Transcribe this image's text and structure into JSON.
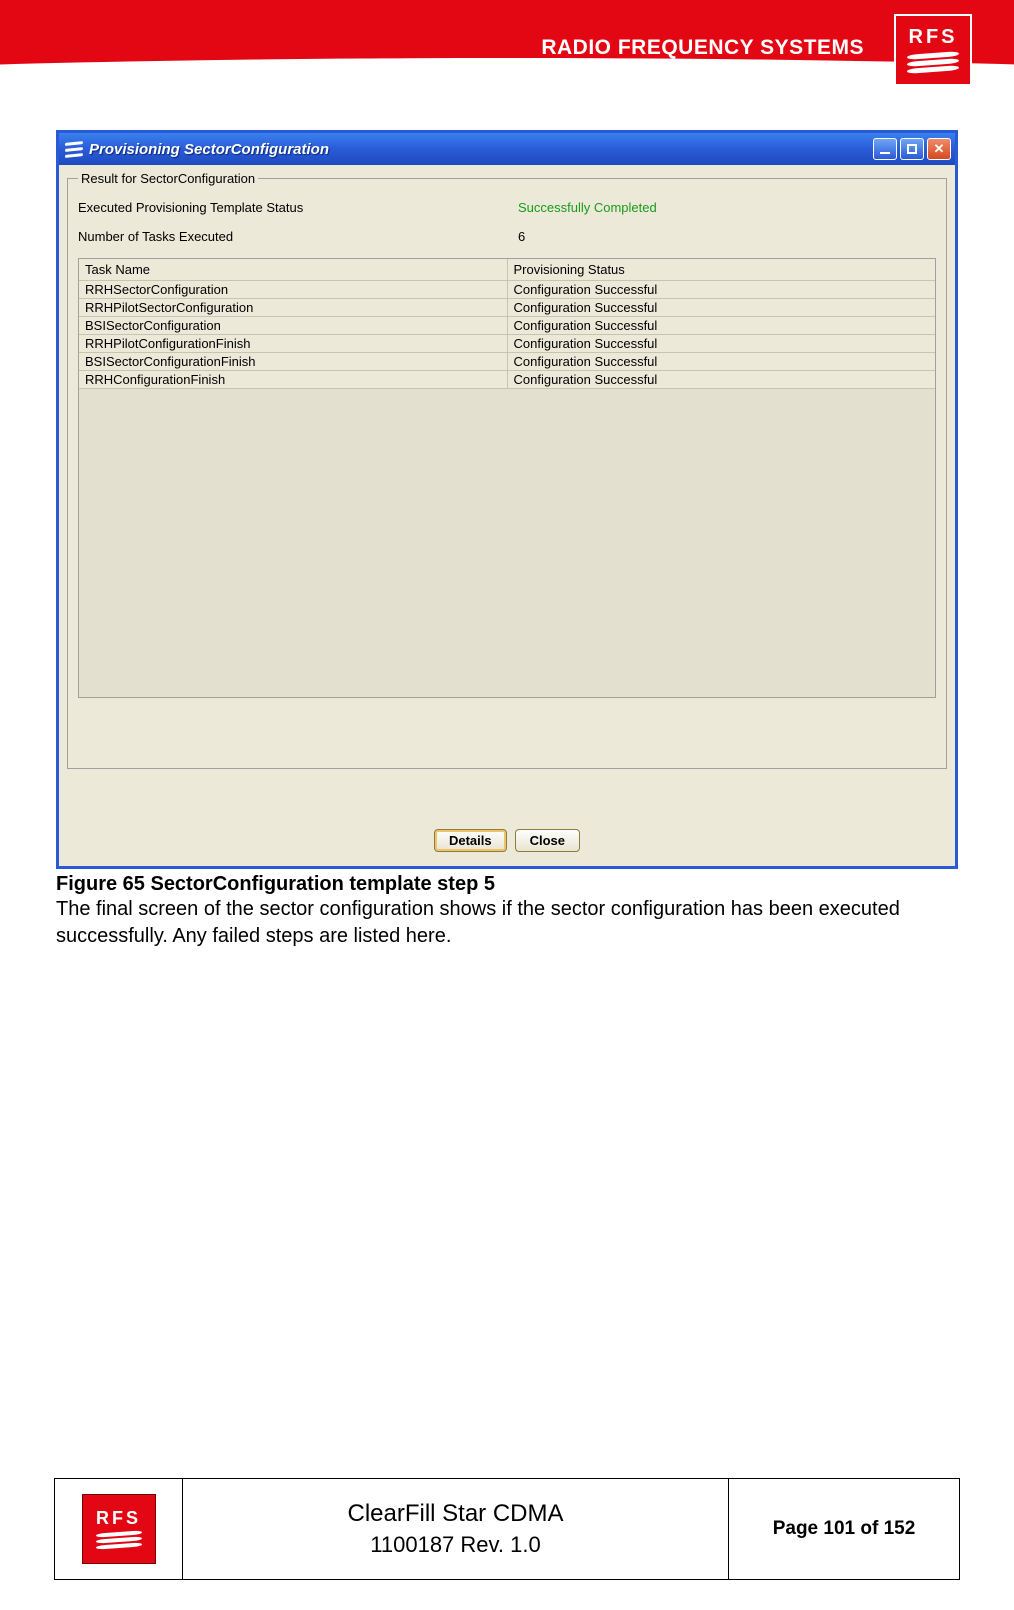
{
  "header": {
    "brand_text": "RADIO FREQUENCY SYSTEMS",
    "logo_text": "RFS"
  },
  "window": {
    "title": "Provisioning SectorConfiguration",
    "fieldset_legend": "Result for SectorConfiguration",
    "status_label": "Executed Provisioning Template Status",
    "status_value": "Successfully Completed",
    "count_label": "Number of Tasks Executed",
    "count_value": "6",
    "columns": {
      "task": "Task Name",
      "status": "Provisioning Status"
    },
    "rows": [
      {
        "task": "RRHSectorConfiguration",
        "status": "Configuration Successful"
      },
      {
        "task": "RRHPilotSectorConfiguration",
        "status": "Configuration Successful"
      },
      {
        "task": "BSISectorConfiguration",
        "status": "Configuration Successful"
      },
      {
        "task": "RRHPilotConfigurationFinish",
        "status": "Configuration Successful"
      },
      {
        "task": "BSISectorConfigurationFinish",
        "status": "Configuration Successful"
      },
      {
        "task": "RRHConfigurationFinish",
        "status": "Configuration Successful"
      }
    ],
    "buttons": {
      "details": "Details",
      "close": "Close"
    }
  },
  "caption": {
    "title": "Figure 65 SectorConfiguration template step 5",
    "body": "The final screen of the sector configuration shows if the sector configuration has been executed successfully. Any failed steps are listed here."
  },
  "footer": {
    "logo_text": "RFS",
    "doc_title": "ClearFill Star CDMA",
    "doc_rev": "1100187 Rev. 1.0",
    "page": "Page 101 of 152"
  }
}
